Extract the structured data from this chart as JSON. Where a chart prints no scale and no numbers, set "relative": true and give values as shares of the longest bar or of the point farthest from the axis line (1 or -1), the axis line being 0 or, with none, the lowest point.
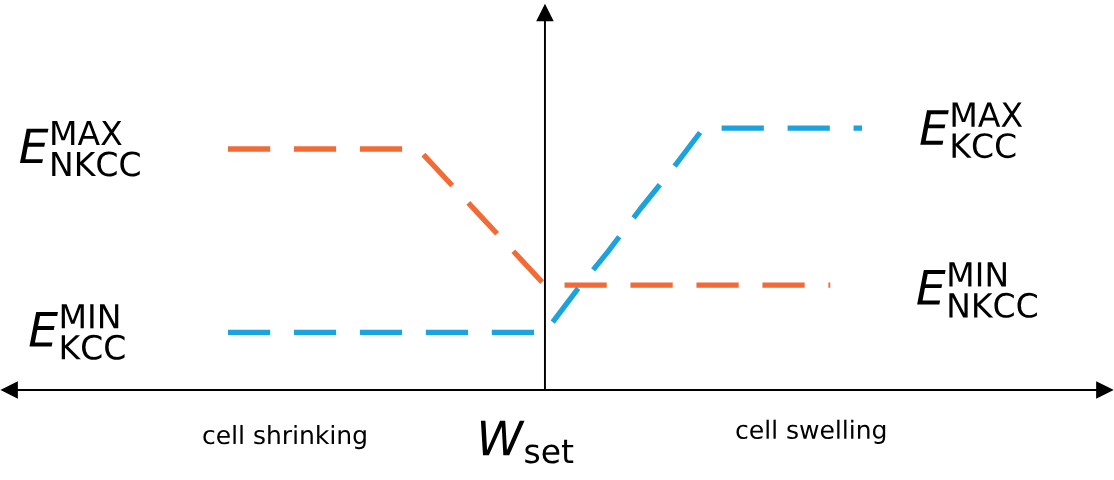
{
  "chart_data": {
    "type": "line",
    "relative": true,
    "line_style": "dashed",
    "categories": [
      null,
      null,
      null,
      null,
      null,
      null,
      null,
      null,
      null,
      null,
      null,
      null,
      null,
      null,
      null,
      null,
      null,
      null,
      null,
      null,
      null
    ],
    "series": [
      {
        "color": "#f26b36",
        "values": [
          0.92,
          0.92,
          0.92,
          0.92,
          0.92,
          0.92,
          0.92,
          0.79,
          0.66,
          0.53,
          0.4,
          0.4,
          0.4,
          0.4,
          0.4,
          0.4,
          0.4,
          0.4,
          0.4,
          0.4,
          null
        ]
      },
      {
        "color": "#1aa3dc",
        "values": [
          0.22,
          0.22,
          0.22,
          0.22,
          0.22,
          0.22,
          0.22,
          0.22,
          0.22,
          0.22,
          0.22,
          0.38,
          0.53,
          0.69,
          0.84,
          1.0,
          1.0,
          1.0,
          1.0,
          1.0,
          1.0
        ]
      }
    ],
    "annotations": [
      "E$^{MAX}$$_{NKCC}$",
      "E$^{MIN}$$_{KCC}$",
      "E$^{MAX}$$_{KCC}$",
      "E$^{MIN}$$_{NKCC}$",
      "cell shrinking",
      "W$_{set}$",
      "cell swelling"
    ]
  }
}
